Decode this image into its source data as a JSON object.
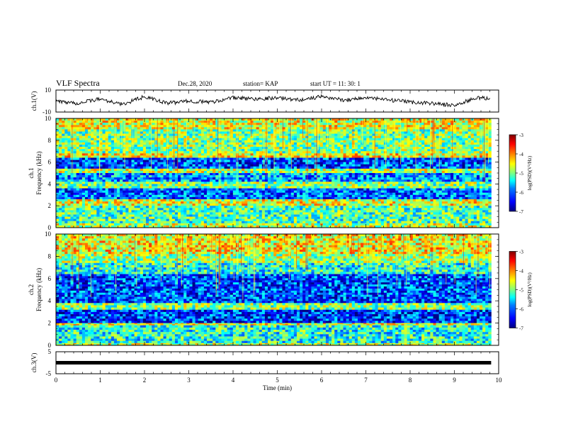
{
  "header": {
    "title": "VLF Spectra",
    "date": "Dec.28, 2020",
    "station": "station= KAP",
    "start": "start  UT =   11: 30: 1"
  },
  "colors": {
    "jet": [
      "#000080",
      "#0000ff",
      "#0080ff",
      "#00ffff",
      "#80ff80",
      "#ffff00",
      "#ff8000",
      "#ff0000",
      "#800000"
    ],
    "waveform": "#000000"
  },
  "chart_data": [
    {
      "type": "line",
      "name": "ch1-waveform",
      "ylabel": "ch.1(V)",
      "ylim": [
        -10,
        10
      ],
      "yticks": [
        "10",
        "-10"
      ],
      "xlim": [
        0,
        10
      ],
      "description_values": {
        "x": [
          0,
          0.5,
          1,
          1.5,
          2,
          2.5,
          3,
          3.5,
          4,
          4.5,
          5,
          5.5,
          6,
          6.5,
          7,
          7.5,
          8,
          8.5,
          9,
          9.5,
          9.8
        ],
        "y": [
          0,
          -2,
          2,
          -3,
          4,
          -2,
          0,
          -1,
          3,
          2,
          3,
          1,
          4,
          1,
          3,
          1,
          -1,
          -2,
          -4,
          3,
          2
        ]
      }
    },
    {
      "type": "heatmap",
      "name": "ch1-spectrogram",
      "ylabel_top": "ch.1",
      "ylabel": "Frequency  (kHz)",
      "ylim": [
        0,
        10
      ],
      "yticks": [
        "0",
        "2",
        "4",
        "6",
        "8",
        "10"
      ],
      "xlim": [
        0,
        9.83
      ],
      "bands_khz": [
        {
          "f": [
            9.0,
            10.0
          ],
          "level": -4.6
        },
        {
          "f": [
            6.8,
            9.0
          ],
          "level": -5.0
        },
        {
          "f": [
            6.4,
            6.8
          ],
          "level": -4.5
        },
        {
          "f": [
            5.4,
            6.4
          ],
          "level": -6.2
        },
        {
          "f": [
            5.0,
            5.4
          ],
          "level": -4.8
        },
        {
          "f": [
            4.2,
            5.0
          ],
          "level": -5.9
        },
        {
          "f": [
            3.6,
            4.2
          ],
          "level": -5.0
        },
        {
          "f": [
            2.6,
            3.6
          ],
          "level": -6.1
        },
        {
          "f": [
            2.0,
            2.6
          ],
          "level": -4.6
        },
        {
          "f": [
            0.4,
            2.0
          ],
          "level": -5.2
        },
        {
          "f": [
            0.0,
            0.4
          ],
          "level": -4.8
        }
      ],
      "colorbar": {
        "label": "log(PSD)(V²/Hz)",
        "range": [
          -7,
          -3
        ],
        "ticks": [
          "-3",
          "-4",
          "-5",
          "-6",
          "-7"
        ]
      }
    },
    {
      "type": "heatmap",
      "name": "ch2-spectrogram",
      "ylabel_top": "ch.2",
      "ylabel": "Frequency  (kHz)",
      "ylim": [
        0,
        10
      ],
      "yticks": [
        "0",
        "2",
        "4",
        "6",
        "8",
        "10"
      ],
      "xlim": [
        0,
        9.83
      ],
      "bands_khz": [
        {
          "f": [
            8.2,
            10.0
          ],
          "level": -4.5
        },
        {
          "f": [
            7.4,
            8.2
          ],
          "level": -4.9
        },
        {
          "f": [
            6.4,
            7.4
          ],
          "level": -5.4
        },
        {
          "f": [
            3.8,
            6.4
          ],
          "level": -6.2
        },
        {
          "f": [
            3.2,
            3.8
          ],
          "level": -5.0
        },
        {
          "f": [
            2.0,
            3.2
          ],
          "level": -6.3
        },
        {
          "f": [
            1.8,
            2.0
          ],
          "level": -4.6
        },
        {
          "f": [
            0.2,
            1.8
          ],
          "level": -5.4
        },
        {
          "f": [
            0.0,
            0.2
          ],
          "level": -4.8
        }
      ],
      "colorbar": {
        "label": "log(PSD)(V²/Hz)",
        "range": [
          -7,
          -3
        ],
        "ticks": [
          "-3",
          "-4",
          "-5",
          "-6",
          "-7"
        ]
      }
    },
    {
      "type": "line",
      "name": "ch3-waveform",
      "ylabel": "ch.3(V)",
      "ylim": [
        -5,
        5
      ],
      "yticks": [
        "5",
        "-5"
      ],
      "xlim": [
        0,
        10
      ],
      "x": [
        0,
        9.83
      ],
      "y": [
        0,
        0
      ]
    }
  ],
  "xaxis": {
    "label": "Time  (min)",
    "ticks": [
      "0",
      "1",
      "2",
      "3",
      "4",
      "5",
      "6",
      "7",
      "8",
      "9",
      "10"
    ],
    "range": [
      0,
      10
    ]
  }
}
